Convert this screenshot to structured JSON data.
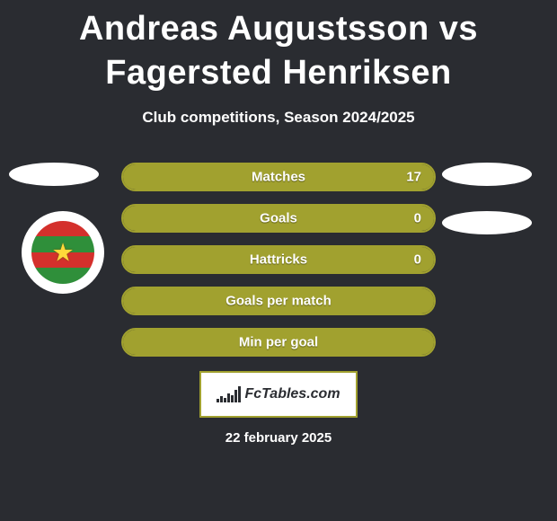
{
  "title": "Andreas Augustsson vs Fagersted Henriksen",
  "subtitle": "Club competitions, Season 2024/2025",
  "colors": {
    "background": "#2a2c31",
    "bar_fill": "#a1a12f",
    "bar_border": "#a1a12f",
    "bar_empty": "#2a2c31",
    "slot_bg": "#ffffff",
    "text": "#ffffff",
    "logo_border": "#a1a12f"
  },
  "badge": {
    "stripes": [
      "#d4302c",
      "#2f8f3a",
      "#d4302c",
      "#2f8f3a"
    ],
    "star_color": "#ffd83a"
  },
  "bars": [
    {
      "label": "Matches",
      "right_value": "17",
      "fill_pct": 100
    },
    {
      "label": "Goals",
      "right_value": "0",
      "fill_pct": 100
    },
    {
      "label": "Hattricks",
      "right_value": "0",
      "fill_pct": 100
    },
    {
      "label": "Goals per match",
      "right_value": "",
      "fill_pct": 100
    },
    {
      "label": "Min per goal",
      "right_value": "",
      "fill_pct": 100
    }
  ],
  "logo_text": "FcTables.com",
  "date": "22 february 2025",
  "chart_bar_heights": [
    4,
    7,
    5,
    10,
    8,
    14,
    18
  ]
}
